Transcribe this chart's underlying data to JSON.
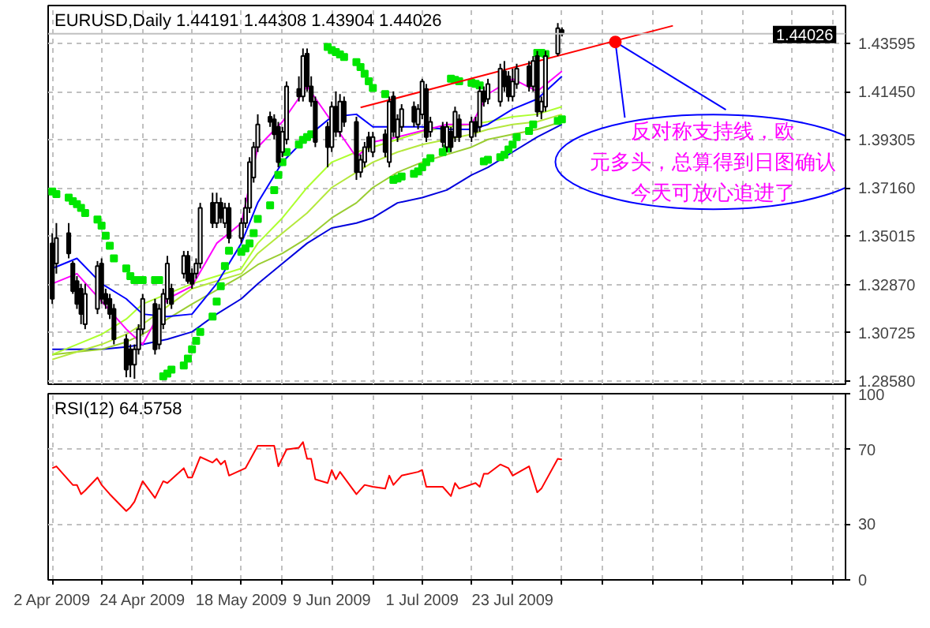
{
  "chart_data": [
    {
      "type": "candlestick",
      "title": "EURUSD,Daily  1.44191 1.44308 1.43904 1.44026",
      "x": [
        "2009-04-02",
        "2009-04-03",
        "2009-04-06",
        "2009-04-07",
        "2009-04-08",
        "2009-04-09",
        "2009-04-10",
        "2009-04-13",
        "2009-04-14",
        "2009-04-15",
        "2009-04-16",
        "2009-04-17",
        "2009-04-20",
        "2009-04-21",
        "2009-04-22",
        "2009-04-23",
        "2009-04-24",
        "2009-04-27",
        "2009-04-28",
        "2009-04-29",
        "2009-04-30",
        "2009-05-01",
        "2009-05-04",
        "2009-05-05",
        "2009-05-06",
        "2009-05-07",
        "2009-05-08",
        "2009-05-11",
        "2009-05-12",
        "2009-05-13",
        "2009-05-14",
        "2009-05-15",
        "2009-05-18",
        "2009-05-19",
        "2009-05-20",
        "2009-05-21",
        "2009-05-22",
        "2009-05-25",
        "2009-05-26",
        "2009-05-27",
        "2009-05-28",
        "2009-05-29",
        "2009-06-01",
        "2009-06-02",
        "2009-06-03",
        "2009-06-04",
        "2009-06-05",
        "2009-06-08",
        "2009-06-09",
        "2009-06-10",
        "2009-06-11",
        "2009-06-12",
        "2009-06-15",
        "2009-06-16",
        "2009-06-17",
        "2009-06-18",
        "2009-06-19",
        "2009-06-22",
        "2009-06-23",
        "2009-06-24",
        "2009-06-25",
        "2009-06-26",
        "2009-06-29",
        "2009-06-30",
        "2009-07-01",
        "2009-07-02",
        "2009-07-03",
        "2009-07-06",
        "2009-07-07",
        "2009-07-08",
        "2009-07-09",
        "2009-07-10",
        "2009-07-13",
        "2009-07-14",
        "2009-07-15",
        "2009-07-16",
        "2009-07-17",
        "2009-07-20",
        "2009-07-21",
        "2009-07-22",
        "2009-07-23",
        "2009-07-24",
        "2009-07-27",
        "2009-07-28",
        "2009-07-29",
        "2009-07-30",
        "2009-07-31",
        "2009-08-03",
        "2009-08-04"
      ],
      "ohlc": [
        [
          1.347,
          1.3515,
          1.32,
          1.3223
        ],
        [
          1.338,
          1.356,
          1.3335,
          1.3493
        ],
        [
          1.3515,
          1.356,
          1.3403,
          1.3425
        ],
        [
          1.338,
          1.3391,
          1.3245,
          1.3257
        ],
        [
          1.3302,
          1.3324,
          1.3178,
          1.32
        ],
        [
          1.3268,
          1.329,
          1.311,
          1.3155
        ],
        [
          1.311,
          1.329,
          1.3088,
          1.3245
        ],
        [
          1.3178,
          1.3391,
          1.3155,
          1.3369
        ],
        [
          1.338,
          1.3403,
          1.32,
          1.3223
        ],
        [
          1.3245,
          1.3268,
          1.3178,
          1.32
        ],
        [
          1.3223,
          1.3245,
          1.3133,
          1.3155
        ],
        [
          1.3178,
          1.32,
          1.302,
          1.3043
        ],
        [
          1.3043,
          1.3065,
          1.2874,
          1.2908
        ],
        [
          1.2998,
          1.302,
          1.2874,
          1.293
        ],
        [
          1.293,
          1.302,
          1.2867,
          1.2998
        ],
        [
          1.2998,
          1.311,
          1.2975,
          1.3088
        ],
        [
          1.3088,
          1.3245,
          1.3065,
          1.3223
        ],
        [
          1.32,
          1.3223,
          1.2975,
          1.2998
        ],
        [
          1.302,
          1.32,
          1.2998,
          1.3178
        ],
        [
          1.311,
          1.3268,
          1.3088,
          1.3245
        ],
        [
          1.3223,
          1.3414,
          1.32,
          1.338
        ],
        [
          1.3268,
          1.329,
          1.3178,
          1.32
        ],
        [
          1.3335,
          1.3436,
          1.3313,
          1.3414
        ],
        [
          1.3414,
          1.3436,
          1.329,
          1.3302
        ],
        [
          1.3335,
          1.3358,
          1.3268,
          1.329
        ],
        [
          1.3335,
          1.3403,
          1.3313,
          1.338
        ],
        [
          1.338,
          1.365,
          1.3358,
          1.3628
        ],
        [
          1.365,
          1.3695,
          1.3538,
          1.356
        ],
        [
          1.356,
          1.3695,
          1.3538,
          1.365
        ],
        [
          1.365,
          1.3673,
          1.356,
          1.3583
        ],
        [
          1.356,
          1.365,
          1.3538,
          1.3628
        ],
        [
          1.3628,
          1.365,
          1.347,
          1.3493
        ],
        [
          1.3493,
          1.3583,
          1.347,
          1.356
        ],
        [
          1.356,
          1.3673,
          1.3538,
          1.3628
        ],
        [
          1.3628,
          1.3853,
          1.3605,
          1.3831
        ],
        [
          1.3763,
          1.3921,
          1.374,
          1.3898
        ],
        [
          1.3898,
          1.4044,
          1.3876,
          1.3999
        ],
        [
          1.4033,
          1.4056,
          1.3988,
          1.401
        ],
        [
          1.4022,
          1.4044,
          1.3932,
          1.3955
        ],
        [
          1.3988,
          1.401,
          1.3808,
          1.3831
        ],
        [
          1.3876,
          1.3988,
          1.3853,
          1.3966
        ],
        [
          1.3932,
          1.419,
          1.391,
          1.4168
        ],
        [
          1.4157,
          1.4213,
          1.4101,
          1.4123
        ],
        [
          1.4123,
          1.4337,
          1.4101,
          1.4303
        ],
        [
          1.4314,
          1.4337,
          1.4145,
          1.4168
        ],
        [
          1.4168,
          1.4213,
          1.4078,
          1.4101
        ],
        [
          1.4101,
          1.4123,
          1.3898,
          1.3921
        ],
        [
          1.3988,
          1.401,
          1.3808,
          1.3898
        ],
        [
          1.3898,
          1.4101,
          1.3876,
          1.4078
        ],
        [
          1.4078,
          1.4146,
          1.3943,
          1.3966
        ],
        [
          1.3966,
          1.4134,
          1.3943,
          1.4101
        ],
        [
          1.4101,
          1.4123,
          1.3988,
          1.401
        ],
        [
          1.401,
          1.4033,
          1.3752,
          1.3786
        ],
        [
          1.3786,
          1.3865,
          1.3763,
          1.3842
        ],
        [
          1.3831,
          1.3921,
          1.3808,
          1.3898
        ],
        [
          1.3943,
          1.3966,
          1.3876,
          1.3898
        ],
        [
          1.3876,
          1.3966,
          1.3853,
          1.3943
        ],
        [
          1.3955,
          1.3977,
          1.3853,
          1.3876
        ],
        [
          1.3831,
          1.4123,
          1.3808,
          1.4101
        ],
        [
          1.4123,
          1.4146,
          1.3943,
          1.3966
        ],
        [
          1.3943,
          1.4044,
          1.3921,
          1.4022
        ],
        [
          1.3988,
          1.4089,
          1.3966,
          1.4067
        ],
        [
          1.4078,
          1.4101,
          1.3988,
          1.401
        ],
        [
          1.3999,
          1.4089,
          1.3977,
          1.4067
        ],
        [
          1.4044,
          1.4202,
          1.4022,
          1.419
        ],
        [
          1.4157,
          1.4179,
          1.3921,
          1.3943
        ],
        [
          1.3966,
          1.4033,
          1.3943,
          1.401
        ],
        [
          1.3988,
          1.401,
          1.3898,
          1.3921
        ],
        [
          1.3898,
          1.401,
          1.3876,
          1.3988
        ],
        [
          1.3966,
          1.3988,
          1.3876,
          1.3898
        ],
        [
          1.3943,
          1.4078,
          1.3921,
          1.4056
        ],
        [
          1.4022,
          1.4044,
          1.3921,
          1.3943
        ],
        [
          1.3943,
          1.4033,
          1.3921,
          1.401
        ],
        [
          1.401,
          1.4033,
          1.3943,
          1.3966
        ],
        [
          1.3988,
          1.4168,
          1.3966,
          1.4146
        ],
        [
          1.4146,
          1.4168,
          1.4078,
          1.4101
        ],
        [
          1.4112,
          1.4202,
          1.4089,
          1.4179
        ],
        [
          1.4101,
          1.4269,
          1.4078,
          1.4247
        ],
        [
          1.4236,
          1.4281,
          1.4145,
          1.4168
        ],
        [
          1.4213,
          1.4236,
          1.4101,
          1.4123
        ],
        [
          1.4123,
          1.4247,
          1.4101,
          1.419
        ],
        [
          1.4179,
          1.4269,
          1.4157,
          1.4247
        ],
        [
          1.4258,
          1.4281,
          1.4145,
          1.4168
        ],
        [
          1.4168,
          1.4303,
          1.4145,
          1.4281
        ],
        [
          1.4303,
          1.4326,
          1.4033,
          1.4056
        ],
        [
          1.4056,
          1.4123,
          1.4022,
          1.4101
        ],
        [
          1.4078,
          1.4326,
          1.4056,
          1.4303
        ],
        [
          1.4314,
          1.445,
          1.4303,
          1.4427
        ],
        [
          1.44191,
          1.44308,
          1.43904,
          1.44026
        ]
      ],
      "series": [
        {
          "type": "line",
          "color": "#0000dd",
          "x": [
            "2009-04-02",
            "2009-04-08",
            "2009-04-14",
            "2009-04-20",
            "2009-04-24",
            "2009-04-30",
            "2009-05-06",
            "2009-05-12",
            "2009-05-18",
            "2009-05-22",
            "2009-05-28",
            "2009-06-03",
            "2009-06-09",
            "2009-06-15",
            "2009-06-19",
            "2009-06-25",
            "2009-07-01",
            "2009-07-07",
            "2009-07-13",
            "2009-07-17",
            "2009-07-23",
            "2009-07-29",
            "2009-08-04"
          ],
          "values": [
            1.2998,
            1.2998,
            1.2998,
            1.3009,
            1.302,
            1.3043,
            1.3076,
            1.3155,
            1.3223,
            1.329,
            1.338,
            1.347,
            1.3538,
            1.356,
            1.3583,
            1.365,
            1.3673,
            1.3707,
            1.3774,
            1.3808,
            1.3876,
            1.3943,
            1.3999
          ]
        },
        {
          "type": "line",
          "color": "#9acd32",
          "x": [
            "2009-04-02",
            "2009-04-08",
            "2009-04-14",
            "2009-04-20",
            "2009-04-24",
            "2009-04-30",
            "2009-05-06",
            "2009-05-12",
            "2009-05-18",
            "2009-05-22",
            "2009-05-28",
            "2009-06-03",
            "2009-06-09",
            "2009-06-15",
            "2009-06-19",
            "2009-06-25",
            "2009-07-01",
            "2009-07-07",
            "2009-07-13",
            "2009-07-17",
            "2009-07-23",
            "2009-07-29",
            "2009-08-04"
          ],
          "values": [
            1.2975,
            1.2987,
            1.2998,
            1.3031,
            1.3065,
            1.3133,
            1.32,
            1.3262,
            1.3324,
            1.3375,
            1.3425,
            1.3493,
            1.3583,
            1.365,
            1.3718,
            1.3786,
            1.3831,
            1.3865,
            1.3898,
            1.3932,
            1.3955,
            1.3977,
            1.4011
          ]
        },
        {
          "type": "line",
          "color": "#b4e83c",
          "x": [
            "2009-04-02",
            "2009-04-08",
            "2009-04-14",
            "2009-04-20",
            "2009-04-24",
            "2009-04-30",
            "2009-05-06",
            "2009-05-12",
            "2009-05-18",
            "2009-05-22",
            "2009-05-28",
            "2009-06-03",
            "2009-06-09",
            "2009-06-15",
            "2009-06-19",
            "2009-06-25",
            "2009-07-01",
            "2009-07-07",
            "2009-07-13",
            "2009-07-17",
            "2009-07-23",
            "2009-07-29",
            "2009-08-04"
          ],
          "values": [
            1.2953,
            1.2987,
            1.302,
            1.3065,
            1.311,
            1.3189,
            1.3268,
            1.3302,
            1.3335,
            1.3425,
            1.3515,
            1.3605,
            1.3718,
            1.3786,
            1.3831,
            1.3876,
            1.3909,
            1.3932,
            1.3955,
            1.3977,
            1.3999,
            1.4011,
            1.4044
          ]
        },
        {
          "type": "line",
          "color": "#adff2f",
          "x": [
            "2009-04-02",
            "2009-04-08",
            "2009-04-14",
            "2009-04-20",
            "2009-04-24",
            "2009-04-30",
            "2009-05-06",
            "2009-05-12",
            "2009-05-18",
            "2009-05-22",
            "2009-05-28",
            "2009-06-03",
            "2009-06-09",
            "2009-06-15",
            "2009-06-19",
            "2009-06-25",
            "2009-07-01",
            "2009-07-07",
            "2009-07-13",
            "2009-07-17",
            "2009-07-23",
            "2009-07-29",
            "2009-08-04"
          ],
          "values": [
            1.2975,
            1.302,
            1.3065,
            1.3133,
            1.32,
            null,
            1.329,
            1.3324,
            1.3358,
            1.347,
            1.3583,
            1.3718,
            1.3831,
            1.3876,
            1.3898,
            1.3932,
            1.3966,
            1.3988,
            1.3999,
            1.4011,
            1.4033,
            1.4044,
            1.4078
          ]
        },
        {
          "type": "line",
          "color": "#0000ff",
          "x": [
            "2009-04-02",
            "2009-04-08",
            "2009-04-14",
            "2009-04-20",
            "2009-04-24",
            "2009-04-30",
            "2009-05-06",
            "2009-05-12",
            "2009-05-18",
            "2009-05-22",
            "2009-05-28",
            "2009-06-03",
            "2009-06-09",
            "2009-06-15",
            "2009-06-19",
            "2009-06-25",
            "2009-07-01",
            "2009-07-07",
            "2009-07-13",
            "2009-07-17",
            "2009-07-23",
            "2009-07-29",
            "2009-08-04"
          ],
          "values": [
            1.3358,
            1.3403,
            1.329,
            1.3223,
            1.3155,
            1.3144,
            1.3155,
            1.329,
            1.347,
            1.3651,
            1.3831,
            1.3943,
            1.4033,
            1.4044,
            1.3988,
            1.3988,
            1.3988,
            1.3977,
            1.3977,
            1.3999,
            1.4067,
            1.4112,
            1.4213
          ]
        },
        {
          "type": "line",
          "color": "#ff00ff",
          "x": [
            "2009-04-02",
            "2009-04-08",
            "2009-04-14",
            "2009-04-20",
            "2009-04-24",
            "2009-04-30",
            "2009-05-06",
            "2009-05-12",
            "2009-05-18",
            "2009-05-22",
            "2009-05-28",
            "2009-06-03",
            "2009-06-09",
            "2009-06-15",
            "2009-06-19",
            "2009-06-25",
            "2009-07-01",
            "2009-07-07",
            "2009-07-13",
            "2009-07-17",
            "2009-07-23",
            "2009-07-29",
            "2009-08-04"
          ],
          "values": [
            1.329,
            1.3335,
            null,
            1.3088,
            1.302,
            1.3223,
            1.3279,
            1.347,
            1.356,
            1.3898,
            1.4011,
            1.4168,
            1.4011,
            1.3853,
            1.3921,
            1.3943,
            null,
            1.3999,
            1.3999,
            1.4134,
            1.4202,
            1.4146,
            1.4236
          ]
        },
        {
          "type": "scatter",
          "marker": "square",
          "color": "#00e600",
          "x": [
            "2009-04-02",
            "2009-04-03",
            "2009-04-06",
            "2009-04-07",
            "2009-04-08",
            "2009-04-09",
            "2009-04-10",
            "2009-04-13",
            "2009-04-14",
            "2009-04-15",
            "2009-04-16",
            "2009-04-17",
            "2009-04-20",
            "2009-04-21",
            "2009-04-22",
            "2009-04-23",
            "2009-04-24",
            "2009-04-27",
            "2009-04-28",
            "2009-04-29",
            "2009-04-30",
            "2009-05-01",
            "2009-05-04",
            "2009-05-05",
            "2009-05-06",
            "2009-05-07",
            "2009-05-08",
            "2009-05-11",
            "2009-05-12",
            "2009-05-13",
            "2009-05-14",
            "2009-05-15",
            "2009-05-18",
            "2009-05-19",
            "2009-05-20",
            "2009-05-21",
            "2009-05-22",
            "2009-05-25",
            "2009-05-26",
            "2009-05-27",
            "2009-05-28",
            "2009-05-29",
            "2009-06-01",
            "2009-06-02",
            "2009-06-03",
            "2009-06-04",
            "2009-06-05",
            "2009-06-08",
            "2009-06-09",
            "2009-06-10",
            "2009-06-11",
            "2009-06-12",
            "2009-06-15",
            "2009-06-16",
            "2009-06-17",
            "2009-06-18",
            "2009-06-19",
            "2009-06-22",
            "2009-06-23",
            "2009-06-24",
            "2009-06-25",
            "2009-06-26",
            "2009-06-29",
            "2009-06-30",
            "2009-07-01",
            "2009-07-02",
            "2009-07-03",
            "2009-07-06",
            "2009-07-07",
            "2009-07-08",
            "2009-07-09",
            "2009-07-10",
            "2009-07-13",
            "2009-07-14",
            "2009-07-15",
            "2009-07-16",
            "2009-07-17",
            "2009-07-20",
            "2009-07-21",
            "2009-07-22",
            "2009-07-23",
            "2009-07-24",
            "2009-07-27",
            "2009-07-28",
            "2009-07-29",
            "2009-07-30",
            "2009-07-31",
            "2009-08-03",
            "2009-08-04"
          ],
          "values": [
            1.37,
            1.3689,
            1.3673,
            1.3657,
            1.3644,
            1.3628,
            1.3605,
            1.3576,
            1.3549,
            1.3504,
            1.3459,
            1.3403,
            1.3358,
            1.3324,
            1.3306,
            1.3306,
            1.3306,
            1.3306,
            1.3306,
            1.2878,
            1.289,
            1.2908,
            1.2926,
            1.2957,
            1.2998,
            1.3036,
            1.3076,
            1.3144,
            1.3211,
            1.3279,
            1.3369,
            1.3437,
            1.3432,
            1.3448,
            1.347,
            1.3515,
            1.3578,
            1.3639,
            1.3707,
            1.3774,
            1.3831,
            1.3876,
            1.3909,
            1.393,
            1.3943,
            1.3955,
            null,
            1.4344,
            1.433,
            1.4321,
            1.431,
            1.4299,
            1.4276,
            1.4254,
            1.4224,
            1.4191,
            1.4161,
            1.4134,
            null,
            1.3752,
            1.3758,
            1.3767,
            1.3779,
            1.379,
            1.3808,
            1.3831,
            1.3849,
            1.3876,
            1.3891,
            1.4202,
            1.4197,
            1.4191,
            1.4184,
            1.418,
            1.4173,
            1.3835,
            1.3842,
            1.3853,
            1.3864,
            1.3887,
            1.3909,
            1.3943,
            1.397,
            1.3999,
            1.4317,
            1.4317,
            1.4312,
            1.4015,
            1.4022
          ]
        },
        {
          "type": "line",
          "color": "#ff0000",
          "x": [
            "2009-06-16",
            "2009-08-31"
          ],
          "values": [
            1.4074,
            1.4438
          ]
        }
      ],
      "xlim": [
        "2009-04-01",
        "2009-10-12"
      ],
      "xticks": [
        {
          "value": "2009-04-02",
          "label": null
        },
        {
          "value": "2009-04-14",
          "label": null
        },
        {
          "value": "2009-04-24",
          "label": null
        },
        {
          "value": "2009-05-06",
          "label": null
        },
        {
          "value": "2009-05-18",
          "label": null
        },
        {
          "value": "2009-05-28",
          "label": null
        },
        {
          "value": "2009-06-09",
          "label": null
        },
        {
          "value": "2009-06-19",
          "label": null
        },
        {
          "value": "2009-07-01",
          "label": null
        },
        {
          "value": "2009-07-13",
          "label": null
        },
        {
          "value": "2009-07-23",
          "label": null
        },
        {
          "value": "2009-08-04",
          "label": null
        },
        {
          "value": "2009-08-14",
          "label": null
        },
        {
          "value": "2009-08-26",
          "label": null
        },
        {
          "value": "2009-09-07",
          "label": null
        },
        {
          "value": "2009-09-17",
          "label": null
        },
        {
          "value": "2009-09-29",
          "label": null
        },
        {
          "value": "2009-10-09",
          "label": null
        }
      ],
      "ylim": [
        1.2843,
        1.4528
      ],
      "yticks": [
        {
          "value": 1.2858,
          "label": "1.28580"
        },
        {
          "value": 1.30725,
          "label": "1.30725"
        },
        {
          "value": 1.3287,
          "label": "1.32870"
        },
        {
          "value": 1.35015,
          "label": "1.35015"
        },
        {
          "value": 1.3716,
          "label": "1.37160"
        },
        {
          "value": 1.39305,
          "label": "1.39305"
        },
        {
          "value": 1.4145,
          "label": "1.41450"
        },
        {
          "value": 1.43595,
          "label": "1.43595"
        }
      ],
      "grid": true,
      "tick_labels": "y",
      "ref_lines": [
        {
          "axis": "y",
          "value": 1.44026,
          "label": "1.44026",
          "color": "#c0c0c0"
        }
      ],
      "annotations": [
        {
          "text": "反对称支持线，欧元多头，总算得到日图确认今天可放心追进了",
          "x": "2009-08-17",
          "y": 1.4366
        }
      ]
    },
    {
      "type": "line",
      "title": "RSI(12) 64.5758",
      "color": "#ff0000",
      "x": [
        "2009-04-02",
        "2009-04-03",
        "2009-04-07",
        "2009-04-08",
        "2009-04-09",
        "2009-04-10",
        "2009-04-13",
        "2009-04-14",
        "2009-04-16",
        "2009-04-20",
        "2009-04-21",
        "2009-04-22",
        "2009-04-24",
        "2009-04-27",
        "2009-04-29",
        "2009-04-30",
        "2009-05-04",
        "2009-05-05",
        "2009-05-06",
        "2009-05-08",
        "2009-05-11",
        "2009-05-12",
        "2009-05-13",
        "2009-05-14",
        "2009-05-15",
        "2009-05-19",
        "2009-05-21",
        "2009-05-22",
        "2009-05-26",
        "2009-05-27",
        "2009-05-29",
        "2009-06-01",
        "2009-06-02",
        "2009-06-03",
        "2009-06-04",
        "2009-06-05",
        "2009-06-08",
        "2009-06-09",
        "2009-06-10",
        "2009-06-11",
        "2009-06-15",
        "2009-06-17",
        "2009-06-19",
        "2009-06-22",
        "2009-06-23",
        "2009-06-24",
        "2009-06-26",
        "2009-06-30",
        "2009-07-01",
        "2009-07-02",
        "2009-07-06",
        "2009-07-08",
        "2009-07-09",
        "2009-07-10",
        "2009-07-14",
        "2009-07-15",
        "2009-07-16",
        "2009-07-17",
        "2009-07-20",
        "2009-07-22",
        "2009-07-23",
        "2009-07-27",
        "2009-07-29",
        "2009-07-30",
        "2009-08-03",
        "2009-08-04"
      ],
      "values": [
        60,
        61,
        51,
        51,
        46,
        48,
        55,
        51,
        46,
        37,
        39,
        42,
        53,
        44,
        53,
        52,
        60,
        55,
        55,
        66,
        63,
        65,
        62,
        64,
        56,
        60,
        68,
        72,
        72,
        61,
        70,
        71,
        74,
        65,
        65,
        54,
        52,
        59,
        54,
        58,
        46,
        51,
        50,
        49,
        56,
        51,
        56,
        58,
        59,
        50,
        50,
        45,
        52,
        49,
        52,
        50,
        57,
        57,
        62,
        60,
        56,
        61,
        47,
        49,
        65,
        64.5758
      ],
      "xlim": [
        "2009-04-01",
        "2009-10-12"
      ],
      "xticks": [
        {
          "value": "2009-04-02",
          "label": "2 Apr 2009"
        },
        {
          "value": "2009-04-14",
          "label": null
        },
        {
          "value": "2009-04-24",
          "label": "24 Apr 2009"
        },
        {
          "value": "2009-05-06",
          "label": null
        },
        {
          "value": "2009-05-18",
          "label": "18 May 2009"
        },
        {
          "value": "2009-05-28",
          "label": null
        },
        {
          "value": "2009-06-09",
          "label": "9 Jun 2009"
        },
        {
          "value": "2009-06-19",
          "label": null
        },
        {
          "value": "2009-07-01",
          "label": "1 Jul 2009"
        },
        {
          "value": "2009-07-13",
          "label": null
        },
        {
          "value": "2009-07-23",
          "label": "23 Jul 2009"
        },
        {
          "value": "2009-08-04",
          "label": null
        },
        {
          "value": "2009-08-14",
          "label": null
        },
        {
          "value": "2009-08-26",
          "label": null
        },
        {
          "value": "2009-09-07",
          "label": null
        },
        {
          "value": "2009-09-17",
          "label": null
        },
        {
          "value": "2009-09-29",
          "label": null
        },
        {
          "value": "2009-10-09",
          "label": null
        }
      ],
      "ylim": [
        0,
        100
      ],
      "yticks": [
        0,
        30,
        70,
        100
      ],
      "grid": true
    }
  ]
}
